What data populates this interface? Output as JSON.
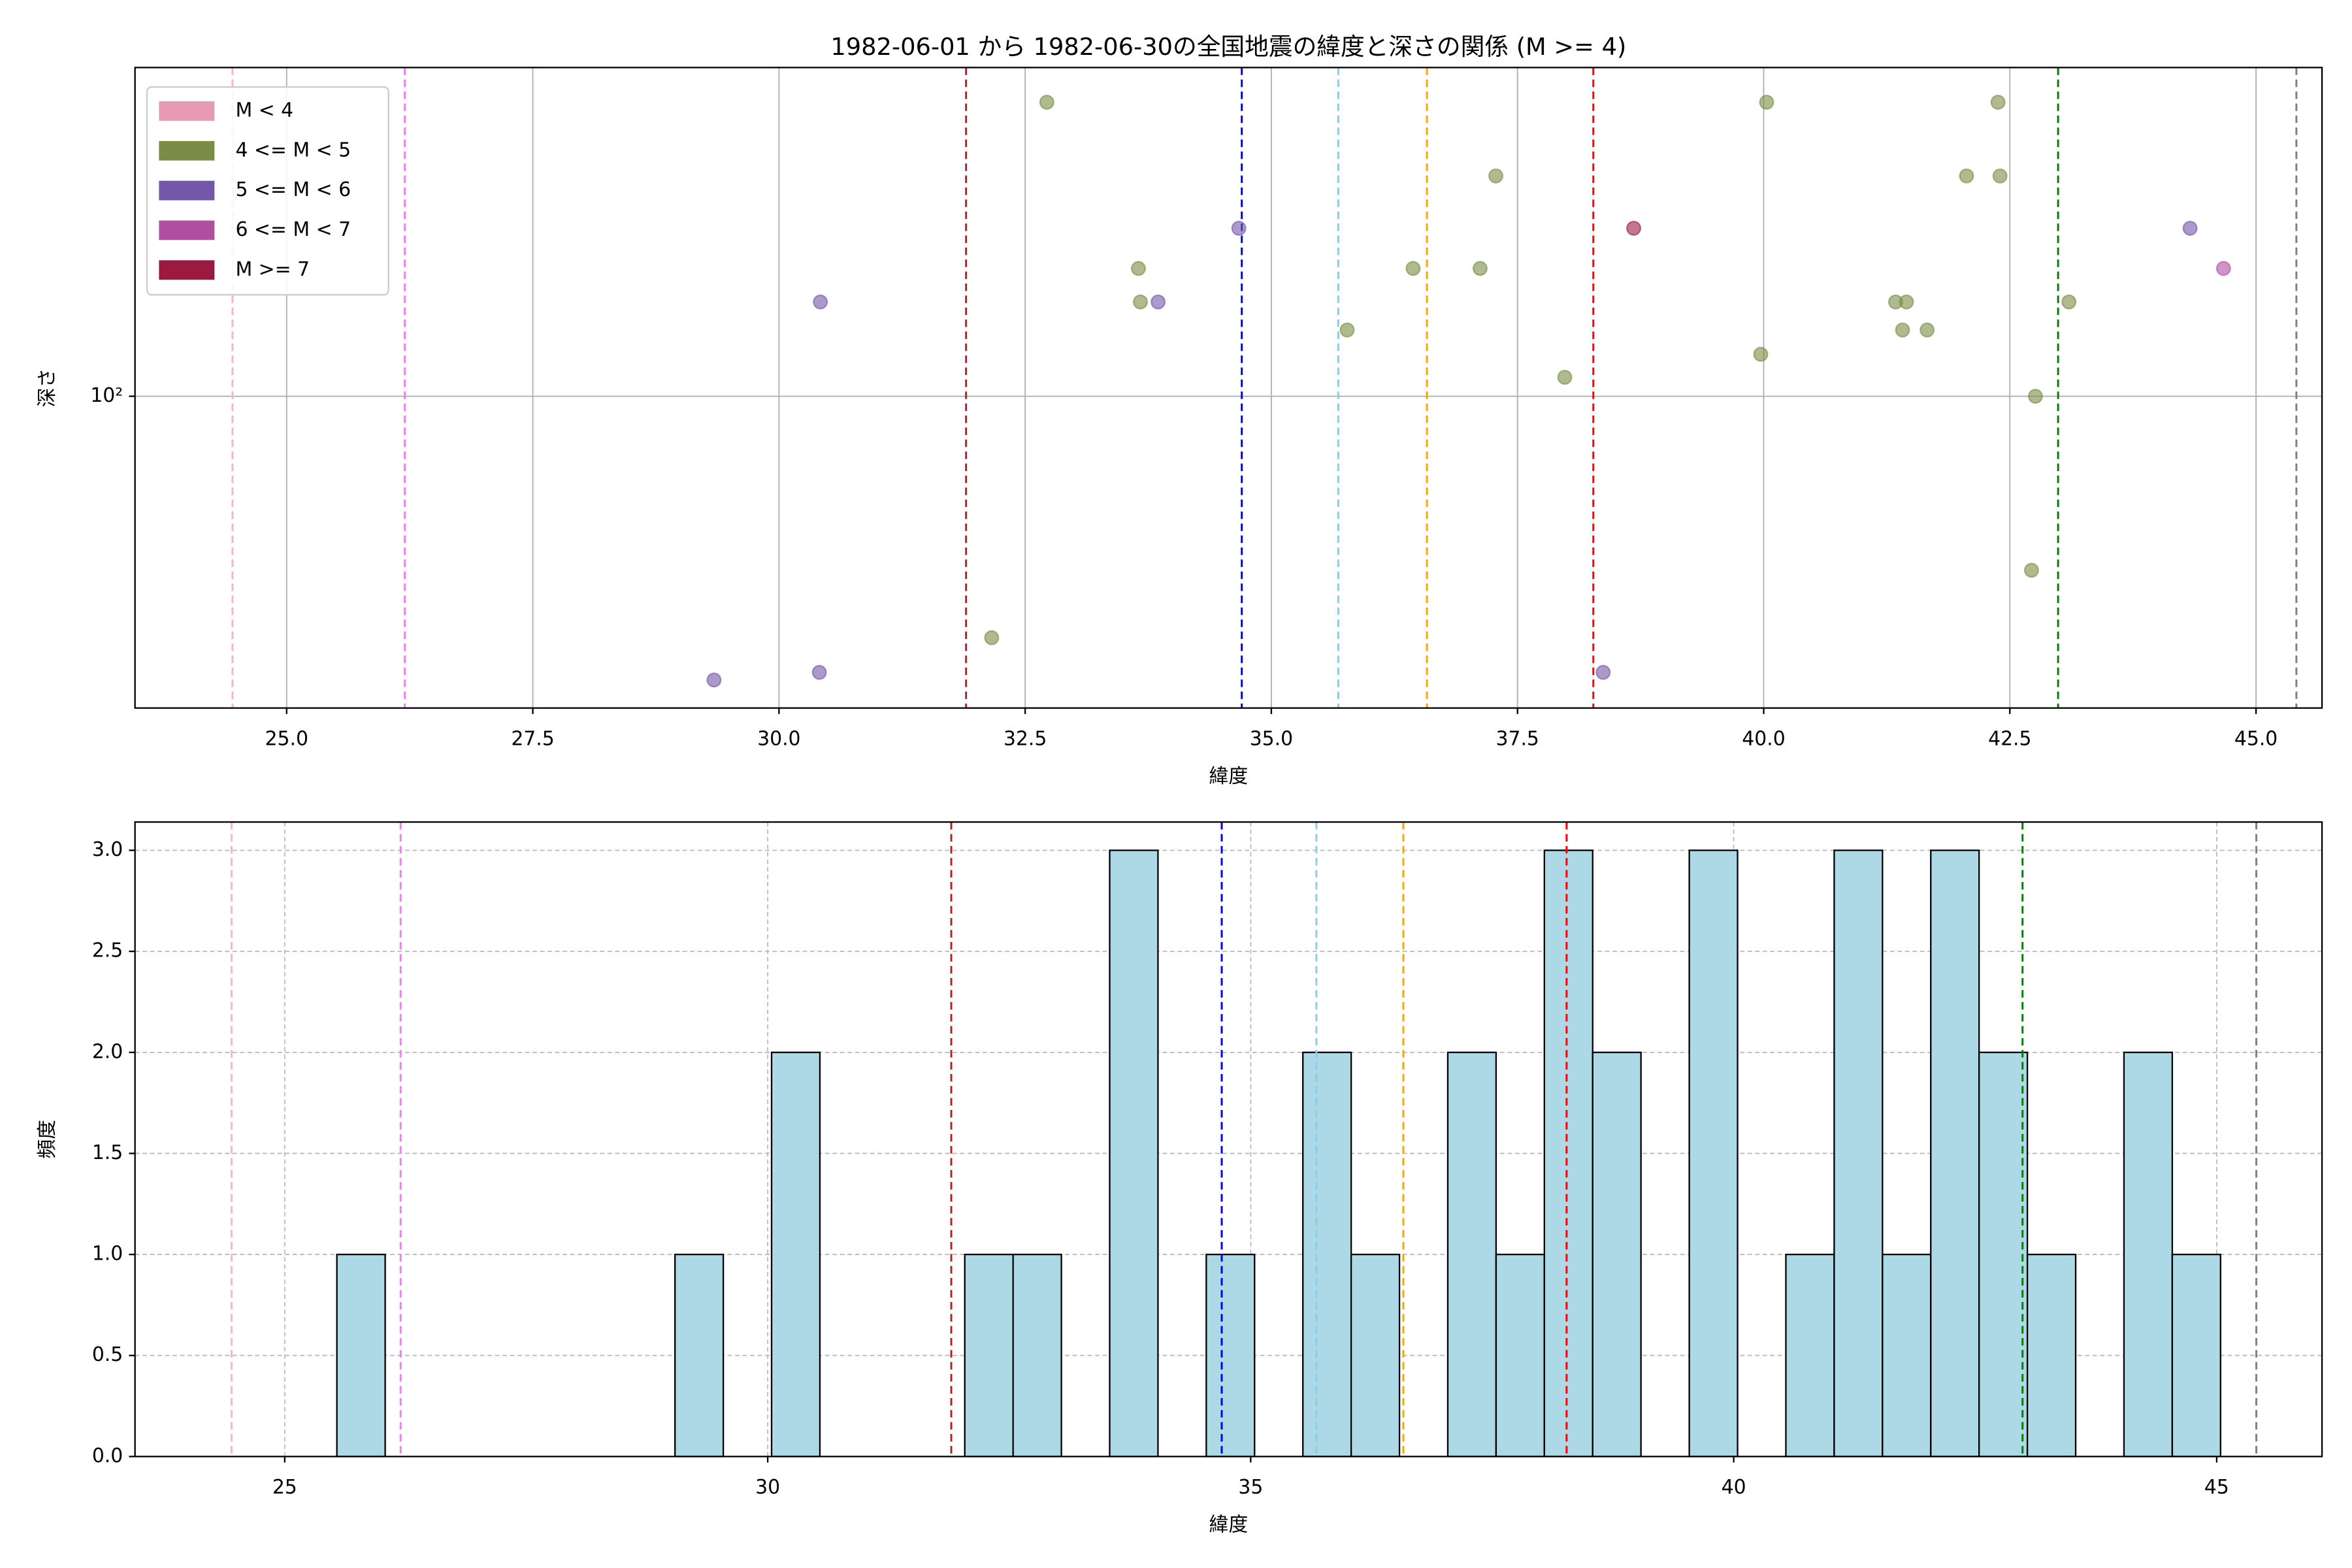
{
  "chart_data": [
    {
      "type": "scatter",
      "title": "1982-06-01 から 1982-06-30の全国地震の緯度と深さの関係 (M >= 4)",
      "xlabel": "緯度",
      "ylabel": "深さ",
      "xlim": [
        23.46,
        45.67
      ],
      "ylim": [
        18,
        610
      ],
      "log_y": true,
      "grid": true,
      "legend": "upper left",
      "alpha": 0.6,
      "xticks": [
        {
          "value": 25,
          "label": "25.0"
        },
        {
          "value": 27.5,
          "label": "27.5"
        },
        {
          "value": 30,
          "label": "30.0"
        },
        {
          "value": 32.5,
          "label": "32.5"
        },
        {
          "value": 35,
          "label": "35.0"
        },
        {
          "value": 37.5,
          "label": "37.5"
        },
        {
          "value": 40,
          "label": "40.0"
        },
        {
          "value": 42.5,
          "label": "42.5"
        },
        {
          "value": 45,
          "label": "45.0"
        }
      ],
      "yticks": [
        {
          "value": 100,
          "label": "10²"
        }
      ],
      "series": [
        {
          "name": "M < 4",
          "color": "#e89ab4",
          "x": [],
          "values": []
        },
        {
          "name": "4 <= M < 5",
          "color": "#7a8c45",
          "x": [
            32.72,
            33.65,
            33.67,
            32.16,
            35.77,
            36.44,
            37.12,
            37.28,
            37.98,
            40.03,
            39.97,
            41.34,
            41.45,
            41.41,
            41.66,
            42.06,
            42.38,
            42.4,
            42.76,
            42.72,
            43.1
          ],
          "values": [
            504,
            202,
            168,
            26.5,
            144,
            202,
            202,
            336,
            111,
            504,
            126,
            168,
            168,
            144,
            144,
            336,
            504,
            336,
            100,
            38.4,
            168
          ]
        },
        {
          "name": "5 <= M < 6",
          "color": "#7457a8",
          "x": [
            29.34,
            30.41,
            30.42,
            33.85,
            34.67,
            38.37,
            44.33
          ],
          "values": [
            21,
            21.9,
            168,
            168,
            252,
            21.9,
            252
          ]
        },
        {
          "name": "6 <= M < 7",
          "color": "#b04fa0",
          "x": [
            44.67
          ],
          "values": [
            202
          ]
        },
        {
          "name": "M >= 7",
          "color": "#9b1b40",
          "x": [
            38.68
          ],
          "values": [
            252
          ]
        }
      ],
      "vlines": [
        {
          "x": 24.45,
          "color": "#ffb6c1"
        },
        {
          "x": 26.2,
          "color": "#ee82ee"
        },
        {
          "x": 31.9,
          "color": "#b22222"
        },
        {
          "x": 34.7,
          "color": "#0000ff"
        },
        {
          "x": 35.68,
          "color": "#87ceeb"
        },
        {
          "x": 36.58,
          "color": "#ffa500"
        },
        {
          "x": 38.27,
          "color": "#ff0000"
        },
        {
          "x": 42.99,
          "color": "#008000"
        },
        {
          "x": 45.41,
          "color": "#808080"
        }
      ]
    },
    {
      "type": "histogram",
      "xlabel": "緯度",
      "ylabel": "頻度",
      "xlim": [
        23.45,
        46.09
      ],
      "ylim": [
        0,
        3.14
      ],
      "grid": true,
      "color": "#add8e6",
      "edgecolor": "#000000",
      "xticks": [
        25,
        30,
        35,
        40,
        45
      ],
      "yticks": [
        {
          "value": 0,
          "label": "0.0"
        },
        {
          "value": 0.5,
          "label": "0.5"
        },
        {
          "value": 1,
          "label": "1.0"
        },
        {
          "value": 1.5,
          "label": "1.5"
        },
        {
          "value": 2,
          "label": "2.0"
        },
        {
          "value": 2.5,
          "label": "2.5"
        },
        {
          "value": 3,
          "label": "3.0"
        }
      ],
      "bins": [
        25.54,
        26.04,
        26.54,
        27.04,
        27.54,
        28.04,
        28.54,
        29.04,
        29.54,
        30.04,
        30.54,
        31.04,
        31.54,
        32.04,
        32.54,
        33.04,
        33.54,
        34.04,
        34.54,
        35.04,
        35.54,
        36.04,
        36.54,
        37.04,
        37.54,
        38.04,
        38.54,
        39.04,
        39.54,
        40.04,
        40.54,
        41.04,
        41.54,
        42.04,
        42.54,
        43.04,
        43.54,
        44.04,
        44.54,
        45.04
      ],
      "values": [
        1,
        0,
        0,
        0,
        0,
        0,
        0,
        1,
        0,
        2,
        0,
        0,
        0,
        1,
        1,
        0,
        3,
        0,
        1,
        0,
        2,
        1,
        0,
        2,
        1,
        3,
        2,
        0,
        3,
        0,
        1,
        3,
        1,
        3,
        2,
        1,
        0,
        2,
        1
      ],
      "vlines": [
        {
          "x": 24.45,
          "color": "#ffb6c1"
        },
        {
          "x": 26.2,
          "color": "#ee82ee"
        },
        {
          "x": 31.9,
          "color": "#b22222"
        },
        {
          "x": 34.7,
          "color": "#0000ff"
        },
        {
          "x": 35.68,
          "color": "#87ceeb"
        },
        {
          "x": 36.58,
          "color": "#ffa500"
        },
        {
          "x": 38.27,
          "color": "#ff0000"
        },
        {
          "x": 42.99,
          "color": "#008000"
        },
        {
          "x": 45.41,
          "color": "#808080"
        }
      ]
    }
  ]
}
